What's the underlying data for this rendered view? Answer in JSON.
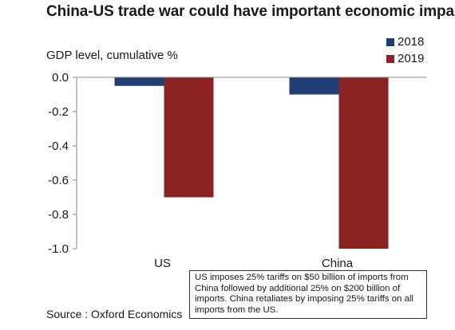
{
  "header": {
    "title": "China-US trade war could have important economic impact",
    "subtitle": "GDP level, cumulative %"
  },
  "note": "US imposes 25% tariffs on $50 billion of imports from China followed by additional 25% on $200 billion of imports. China retaliates by imposing 25% tariffs on all imports from the US.",
  "source": "Source : Oxford Economics",
  "chart_data": {
    "type": "bar",
    "title": "China-US trade war could have important economic impact",
    "ylabel": "GDP level, cumulative %",
    "xlabel": "",
    "categories": [
      "US",
      "China"
    ],
    "series": [
      {
        "name": "2018",
        "color": "#1f3f73",
        "values": [
          -0.05,
          -0.1
        ]
      },
      {
        "name": "2019",
        "color": "#8b2325",
        "values": [
          -0.7,
          -1.0
        ]
      }
    ],
    "ylim": [
      -1.0,
      0.0
    ],
    "yticks": [
      0.0,
      -0.2,
      -0.4,
      -0.6,
      -0.8,
      -1.0
    ],
    "ytick_labels": [
      "0.0",
      "-0.2",
      "-0.4",
      "-0.6",
      "-0.8",
      "-1.0"
    ],
    "grid": false,
    "legend": "top-right"
  }
}
